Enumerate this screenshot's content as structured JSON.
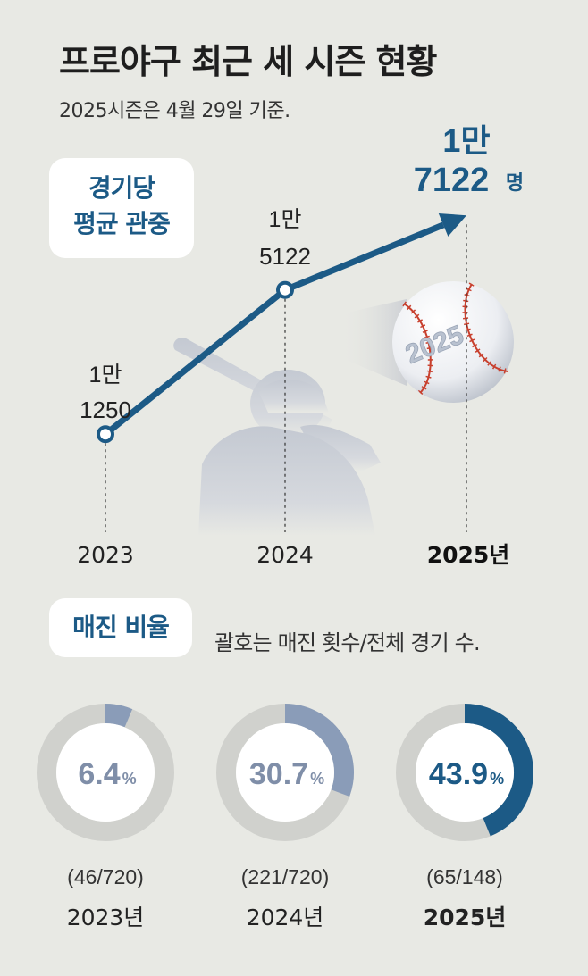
{
  "header": {
    "title": "프로야구 최근 세 시즌 현황",
    "subtitle": "2025시즌은 4월 29일 기준."
  },
  "attendance": {
    "label_line1": "경기당",
    "label_line2": "평균 관중"
  },
  "sellout": {
    "label": "매진 비율",
    "note": "괄호는 매진 횟수/전체 경기 수."
  },
  "decor": {
    "ball_text": "2025"
  },
  "colors": {
    "line": "#1c5a86",
    "text_accent": "#1c5a86",
    "donut_track": "#d0d1cd",
    "donut_2023": "#8a9cb8",
    "donut_2024": "#8a9cb8",
    "donut_2025": "#1c5a86",
    "pct_light": "#7f8ea8",
    "pct_dark": "#1c5a86"
  },
  "chart_data": [
    {
      "type": "line",
      "x": [
        "2023",
        "2024",
        "2025년"
      ],
      "values": [
        11250,
        15122,
        17122
      ],
      "value_labels": [
        {
          "line1": "1만",
          "line2": "1250"
        },
        {
          "line1": "1만",
          "line2": "5122"
        },
        {
          "line1": "1만",
          "line2": "7122",
          "unit": "명"
        }
      ],
      "title": "경기당 평균 관중",
      "ylim": [
        10800,
        17200
      ]
    },
    {
      "type": "pie",
      "title": "매진 비율",
      "items": [
        {
          "year": "2023년",
          "percent": 6.4,
          "pct_text": "6.4",
          "pct_unit": "%",
          "count": "(46/720)"
        },
        {
          "year": "2024년",
          "percent": 30.7,
          "pct_text": "30.7",
          "pct_unit": "%",
          "count": "(221/720)"
        },
        {
          "year": "2025년",
          "percent": 43.9,
          "pct_text": "43.9",
          "pct_unit": "%",
          "count": "(65/148)"
        }
      ]
    }
  ]
}
